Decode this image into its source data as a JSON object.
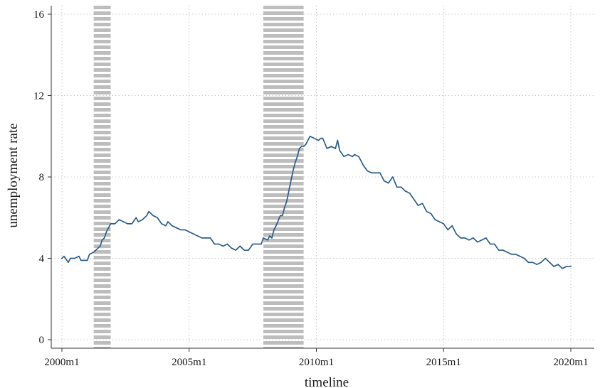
{
  "chart_data": {
    "type": "line",
    "xlabel": "timeline",
    "ylabel": "unemployment rate",
    "xlim": [
      2000.0,
      2020.0
    ],
    "ylim": [
      0,
      16
    ],
    "x_ticks": [
      {
        "value": 2000,
        "label": "2000m1"
      },
      {
        "value": 2005,
        "label": "2005m1"
      },
      {
        "value": 2010,
        "label": "2010m1"
      },
      {
        "value": 2015,
        "label": "2015m1"
      },
      {
        "value": 2020,
        "label": "2020m1"
      }
    ],
    "y_ticks": [
      {
        "value": 0,
        "label": "0"
      },
      {
        "value": 4,
        "label": "4"
      },
      {
        "value": 8,
        "label": "8"
      },
      {
        "value": 12,
        "label": "12"
      },
      {
        "value": 16,
        "label": "16"
      }
    ],
    "grid": true,
    "legend": "none",
    "recession_bands": [
      {
        "start": "2001m4",
        "end": "2001m11"
      },
      {
        "start": "2007m12",
        "end": "2009m6"
      }
    ],
    "colors": {
      "line": "#2c5d8a",
      "band_stripe": "#bdbdbd",
      "grid": "#c8c8c8",
      "axis": "#333333"
    },
    "series": [
      {
        "values": [
          [
            "2000m1",
            4.0
          ],
          [
            "2000m2",
            4.1
          ],
          [
            "2000m4",
            3.8
          ],
          [
            "2000m5",
            4.0
          ],
          [
            "2000m7",
            4.0
          ],
          [
            "2000m9",
            4.1
          ],
          [
            "2000m10",
            3.9
          ],
          [
            "2001m1",
            3.9
          ],
          [
            "2001m2",
            4.2
          ],
          [
            "2001m4",
            4.3
          ],
          [
            "2001m5",
            4.4
          ],
          [
            "2001m6",
            4.5
          ],
          [
            "2001m7",
            4.6
          ],
          [
            "2001m8",
            4.9
          ],
          [
            "2001m9",
            5.0
          ],
          [
            "2001m10",
            5.3
          ],
          [
            "2001m11",
            5.5
          ],
          [
            "2001m12",
            5.7
          ],
          [
            "2002m2",
            5.7
          ],
          [
            "2002m4",
            5.9
          ],
          [
            "2002m6",
            5.8
          ],
          [
            "2002m8",
            5.7
          ],
          [
            "2002m10",
            5.7
          ],
          [
            "2002m12",
            6.0
          ],
          [
            "2003m1",
            5.8
          ],
          [
            "2003m3",
            5.9
          ],
          [
            "2003m5",
            6.1
          ],
          [
            "2003m6",
            6.3
          ],
          [
            "2003m8",
            6.1
          ],
          [
            "2003m10",
            6.0
          ],
          [
            "2003m12",
            5.7
          ],
          [
            "2004m2",
            5.6
          ],
          [
            "2004m3",
            5.8
          ],
          [
            "2004m5",
            5.6
          ],
          [
            "2004m7",
            5.5
          ],
          [
            "2004m9",
            5.4
          ],
          [
            "2004m11",
            5.4
          ],
          [
            "2005m1",
            5.3
          ],
          [
            "2005m3",
            5.2
          ],
          [
            "2005m5",
            5.1
          ],
          [
            "2005m7",
            5.0
          ],
          [
            "2005m9",
            5.0
          ],
          [
            "2005m11",
            5.0
          ],
          [
            "2006m1",
            4.7
          ],
          [
            "2006m3",
            4.7
          ],
          [
            "2006m5",
            4.6
          ],
          [
            "2006m7",
            4.7
          ],
          [
            "2006m9",
            4.5
          ],
          [
            "2006m11",
            4.4
          ],
          [
            "2007m1",
            4.6
          ],
          [
            "2007m3",
            4.4
          ],
          [
            "2007m5",
            4.4
          ],
          [
            "2007m7",
            4.7
          ],
          [
            "2007m9",
            4.7
          ],
          [
            "2007m11",
            4.7
          ],
          [
            "2007m12",
            5.0
          ],
          [
            "2008m2",
            4.9
          ],
          [
            "2008m3",
            5.1
          ],
          [
            "2008m4",
            5.0
          ],
          [
            "2008m5",
            5.4
          ],
          [
            "2008m6",
            5.6
          ],
          [
            "2008m8",
            6.1
          ],
          [
            "2008m9",
            6.1
          ],
          [
            "2008m10",
            6.5
          ],
          [
            "2008m11",
            6.8
          ],
          [
            "2008m12",
            7.3
          ],
          [
            "2009m1",
            7.8
          ],
          [
            "2009m2",
            8.3
          ],
          [
            "2009m3",
            8.7
          ],
          [
            "2009m4",
            9.0
          ],
          [
            "2009m5",
            9.4
          ],
          [
            "2009m6",
            9.5
          ],
          [
            "2009m7",
            9.5
          ],
          [
            "2009m8",
            9.6
          ],
          [
            "2009m9",
            9.8
          ],
          [
            "2009m10",
            10.0
          ],
          [
            "2009m12",
            9.9
          ],
          [
            "2010m2",
            9.8
          ],
          [
            "2010m3",
            9.9
          ],
          [
            "2010m4",
            9.9
          ],
          [
            "2010m6",
            9.4
          ],
          [
            "2010m8",
            9.5
          ],
          [
            "2010m10",
            9.4
          ],
          [
            "2010m11",
            9.8
          ],
          [
            "2010m12",
            9.3
          ],
          [
            "2011m2",
            9.0
          ],
          [
            "2011m4",
            9.1
          ],
          [
            "2011m6",
            9.0
          ],
          [
            "2011m7",
            9.1
          ],
          [
            "2011m9",
            9.0
          ],
          [
            "2011m11",
            8.6
          ],
          [
            "2012m1",
            8.3
          ],
          [
            "2012m3",
            8.2
          ],
          [
            "2012m5",
            8.2
          ],
          [
            "2012m7",
            8.2
          ],
          [
            "2012m9",
            7.8
          ],
          [
            "2012m11",
            7.7
          ],
          [
            "2013m1",
            8.0
          ],
          [
            "2013m3",
            7.5
          ],
          [
            "2013m5",
            7.5
          ],
          [
            "2013m7",
            7.3
          ],
          [
            "2013m9",
            7.2
          ],
          [
            "2013m11",
            6.9
          ],
          [
            "2014m1",
            6.6
          ],
          [
            "2014m3",
            6.7
          ],
          [
            "2014m5",
            6.3
          ],
          [
            "2014m7",
            6.2
          ],
          [
            "2014m9",
            5.9
          ],
          [
            "2014m11",
            5.8
          ],
          [
            "2015m1",
            5.7
          ],
          [
            "2015m3",
            5.4
          ],
          [
            "2015m5",
            5.6
          ],
          [
            "2015m7",
            5.2
          ],
          [
            "2015m9",
            5.0
          ],
          [
            "2015m11",
            5.0
          ],
          [
            "2016m1",
            4.9
          ],
          [
            "2016m3",
            5.0
          ],
          [
            "2016m5",
            4.8
          ],
          [
            "2016m7",
            4.9
          ],
          [
            "2016m9",
            5.0
          ],
          [
            "2016m11",
            4.7
          ],
          [
            "2017m1",
            4.7
          ],
          [
            "2017m3",
            4.4
          ],
          [
            "2017m5",
            4.4
          ],
          [
            "2017m7",
            4.3
          ],
          [
            "2017m9",
            4.2
          ],
          [
            "2017m11",
            4.2
          ],
          [
            "2018m1",
            4.1
          ],
          [
            "2018m3",
            4.0
          ],
          [
            "2018m5",
            3.8
          ],
          [
            "2018m7",
            3.8
          ],
          [
            "2018m9",
            3.7
          ],
          [
            "2018m11",
            3.8
          ],
          [
            "2019m1",
            4.0
          ],
          [
            "2019m3",
            3.8
          ],
          [
            "2019m5",
            3.6
          ],
          [
            "2019m7",
            3.7
          ],
          [
            "2019m9",
            3.5
          ],
          [
            "2019m11",
            3.6
          ],
          [
            "2020m1",
            3.6
          ]
        ]
      }
    ]
  }
}
